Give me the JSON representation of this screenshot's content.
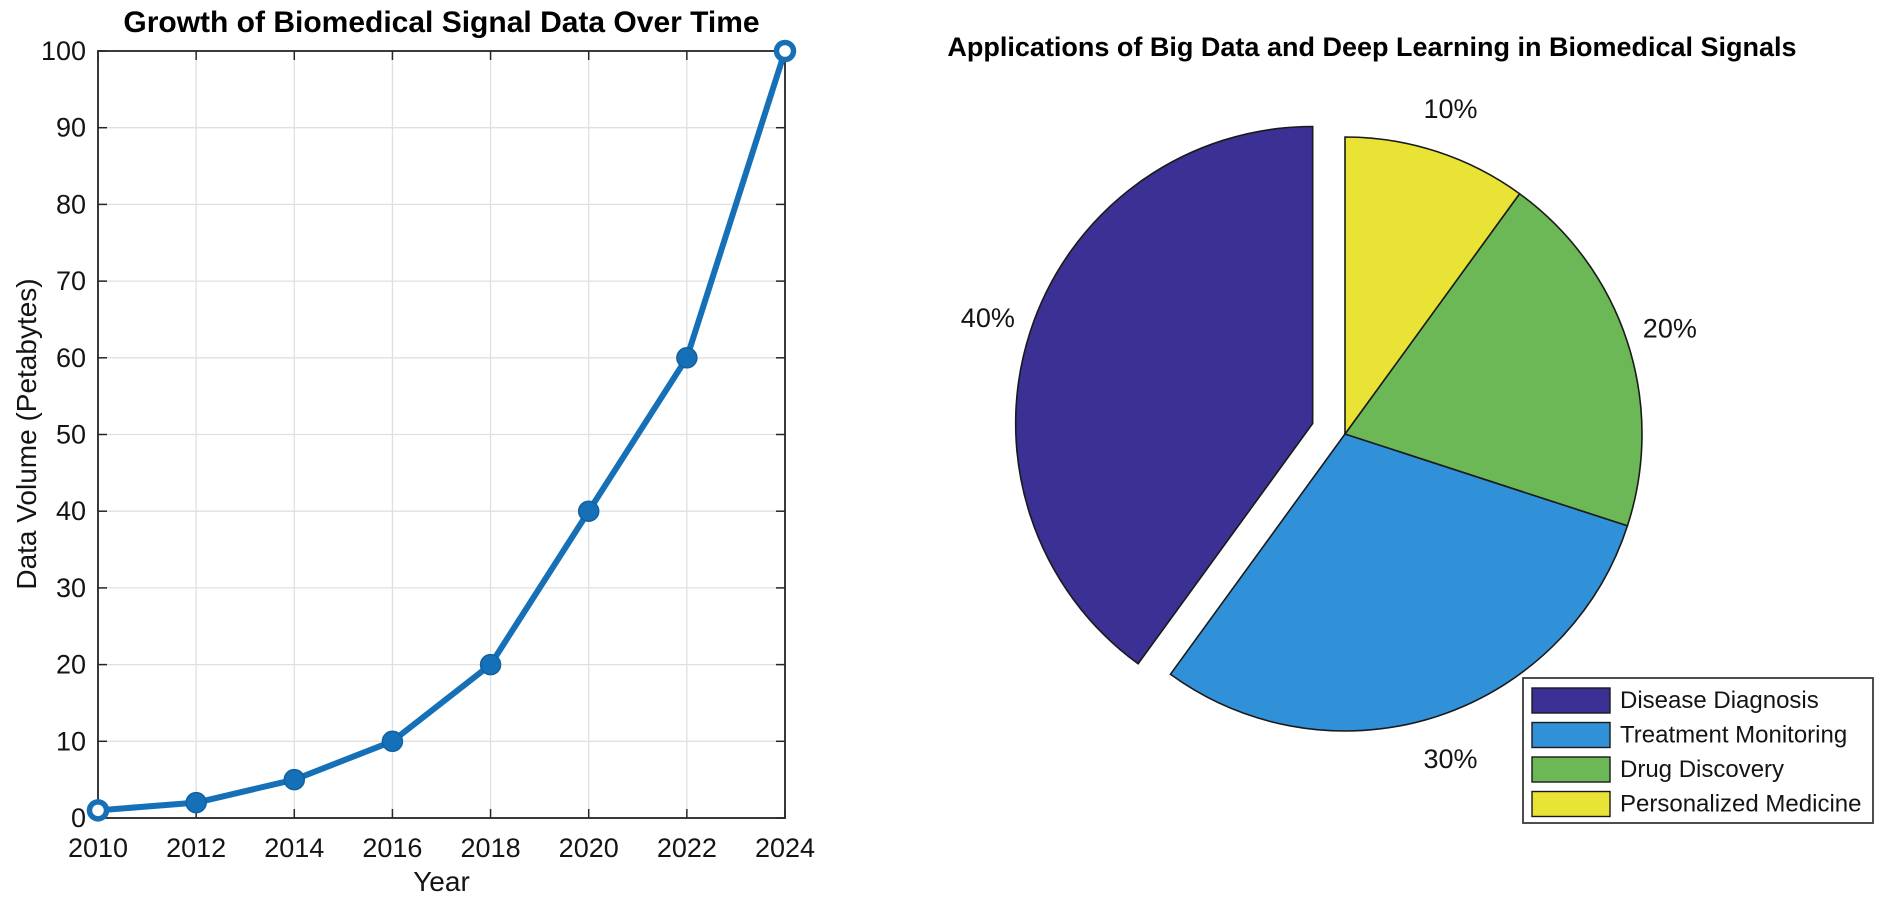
{
  "figure": {
    "background": "#ffffff",
    "left_chart": {
      "title": "Growth of Biomedical Signal Data Over Time",
      "xlabel": "Year",
      "ylabel": "Data Volume (Petabytes)"
    },
    "right_chart": {
      "title": "Applications of Big Data and Deep Learning in Biomedical Signals"
    }
  },
  "chart_data": [
    {
      "type": "line",
      "title": "Growth of Biomedical Signal Data Over Time",
      "xlabel": "Year",
      "ylabel": "Data Volume (Petabytes)",
      "x": [
        2010,
        2012,
        2014,
        2016,
        2018,
        2020,
        2022,
        2024
      ],
      "values": [
        1,
        2,
        5,
        10,
        20,
        40,
        60,
        100
      ],
      "xticks": [
        2010,
        2012,
        2014,
        2016,
        2018,
        2020,
        2022,
        2024
      ],
      "yticks": [
        0,
        10,
        20,
        30,
        40,
        50,
        60,
        70,
        80,
        90,
        100
      ],
      "xlim": [
        2010,
        2024
      ],
      "ylim": [
        0,
        100
      ],
      "grid": true,
      "line_color": "#1670b8",
      "marker": "o",
      "axis_color": "#262626",
      "grid_color": "#e0e0e0"
    },
    {
      "type": "pie",
      "title": "Applications of Big Data and Deep Learning in Biomedical Signals",
      "slices": [
        {
          "label": "Disease Diagnosis",
          "value": 40,
          "pct_label": "40%",
          "color": "#3b3093",
          "exploded": true
        },
        {
          "label": "Treatment Monitoring",
          "value": 30,
          "pct_label": "30%",
          "color": "#3090d8",
          "exploded": false
        },
        {
          "label": "Drug Discovery",
          "value": 20,
          "pct_label": "20%",
          "color": "#6cb857",
          "exploded": false
        },
        {
          "label": "Personalized Medicine",
          "value": 10,
          "pct_label": "10%",
          "color": "#e8e335",
          "exploded": false
        }
      ],
      "start_angle_deg": 90,
      "direction": "counterclockwise",
      "slice_edge_color": "#1a1a1a",
      "legend_position": "bottom-right",
      "legend_edge_color": "#3a3a3a"
    }
  ]
}
